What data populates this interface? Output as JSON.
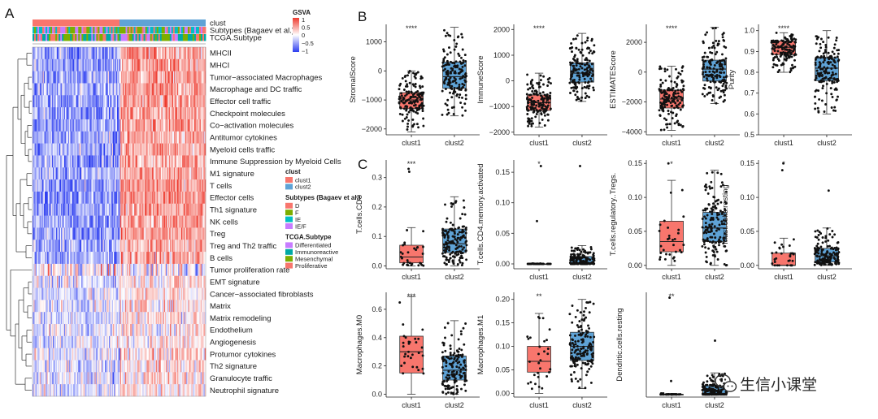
{
  "figure": {
    "panel_labels": [
      "A",
      "B",
      "C"
    ],
    "watermark_text": "生信小课堂",
    "colors": {
      "clust1": "#f8766d",
      "clust2": "#5fa3d6",
      "heat_high": "#ee3b2f",
      "heat_mid": "#ffffff",
      "heat_low": "#2c3df0"
    }
  },
  "heatmap": {
    "annotation_rows": [
      "clust",
      "Subtypes (Bagaev et al.)",
      "TCGA.Subtype"
    ],
    "gsva_legend": {
      "title": "GSVA",
      "ticks": [
        "1",
        "0.5",
        "0",
        "−0.5",
        "−1"
      ]
    },
    "rows": [
      "MHCII",
      "MHCI",
      "Tumor−associated Macrophages",
      "Macrophage and DC traffic",
      "Effector cell traffic",
      "Checkpoint molecules",
      "Co−activation molecules",
      "Antitumor cytokines",
      "Myeloid cells traffic",
      "Immune Suppression by Myeloid Cells",
      "M1 signature",
      "T cells",
      "Effector cells",
      "Th1 signature",
      "NK cells",
      "Treg",
      "Treg and Th2 traffic",
      "B cells",
      "Tumor proliferation rate",
      "EMT signature",
      "Cancer−associated fibroblasts",
      "Matrix",
      "Matrix remodeling",
      "Endothelium",
      "Angiogenesis",
      "Protumor cytokines",
      "Th2 signature",
      "Granulocyte traffic",
      "Neutrophil signature"
    ],
    "legends": [
      {
        "title": "clust",
        "items": [
          {
            "label": "clust1",
            "color": "#f8766d"
          },
          {
            "label": "clust2",
            "color": "#5fa3d6"
          }
        ]
      },
      {
        "title": "Subtypes (Bagaev et al.)",
        "items": [
          {
            "label": "D",
            "color": "#f8766d"
          },
          {
            "label": "F",
            "color": "#7cae00"
          },
          {
            "label": "IE",
            "color": "#00bfc4"
          },
          {
            "label": "IE/F",
            "color": "#c77cff"
          }
        ]
      },
      {
        "title": "TCGA.Subtype",
        "items": [
          {
            "label": "Differentiated",
            "color": "#c77cff"
          },
          {
            "label": "Immunoreactive",
            "color": "#00a9a5"
          },
          {
            "label": "Mesenchymal",
            "color": "#7cae00"
          },
          {
            "label": "Proliferative",
            "color": "#f8766d"
          }
        ]
      }
    ]
  },
  "chart_data": [
    {
      "type": "box",
      "panel": "B",
      "ylabel": "StromalScore",
      "categories": [
        "clust1",
        "clust2"
      ],
      "significance": "****",
      "ylim": [
        -2200,
        1600
      ],
      "yticks": [
        1000,
        0,
        -1000,
        -2000
      ],
      "series": [
        {
          "name": "clust1",
          "min": -2100,
          "q1": -1300,
          "median": -1000,
          "q3": -750,
          "max": 0
        },
        {
          "name": "clust2",
          "min": -1550,
          "q1": -600,
          "median": -200,
          "q3": 300,
          "max": 1500
        }
      ]
    },
    {
      "type": "box",
      "panel": "B",
      "ylabel": "ImmuneScore",
      "categories": [
        "clust1",
        "clust2"
      ],
      "significance": "****",
      "ylim": [
        -2100,
        2200
      ],
      "yticks": [
        2000,
        1000,
        0,
        -1000,
        -2000
      ],
      "series": [
        {
          "name": "clust1",
          "min": -1800,
          "q1": -1150,
          "median": -850,
          "q3": -550,
          "max": 300
        },
        {
          "name": "clust2",
          "min": -800,
          "q1": -50,
          "median": 300,
          "q3": 700,
          "max": 1850
        }
      ]
    },
    {
      "type": "box",
      "panel": "B",
      "ylabel": "ESTIMATEScore",
      "categories": [
        "clust1",
        "clust2"
      ],
      "significance": "****",
      "ylim": [
        -4200,
        3200
      ],
      "yticks": [
        2000,
        0,
        -2000,
        -4000
      ],
      "series": [
        {
          "name": "clust1",
          "min": -3900,
          "q1": -2400,
          "median": -1800,
          "q3": -1200,
          "max": 400
        },
        {
          "name": "clust2",
          "min": -2100,
          "q1": -600,
          "median": 200,
          "q3": 800,
          "max": 3000
        }
      ]
    },
    {
      "type": "box",
      "panel": "B",
      "ylabel": "Purity",
      "categories": [
        "clust1",
        "clust2"
      ],
      "significance": "****",
      "ylim": [
        0.5,
        1.03
      ],
      "yticks": [
        1.0,
        0.9,
        0.8,
        0.7,
        0.6,
        0.5
      ],
      "series": [
        {
          "name": "clust1",
          "min": 0.8,
          "q1": 0.885,
          "median": 0.92,
          "q3": 0.95,
          "max": 0.99
        },
        {
          "name": "clust2",
          "min": 0.6,
          "q1": 0.76,
          "median": 0.82,
          "q3": 0.87,
          "max": 1.0
        }
      ]
    },
    {
      "type": "box",
      "panel": "C",
      "ylabel": "T.cells.CD8",
      "categories": [
        "clust1",
        "clust2"
      ],
      "significance": "***",
      "ylim": [
        -0.01,
        0.36
      ],
      "yticks": [
        0.3,
        0.2,
        0.1,
        0.0
      ],
      "series": [
        {
          "name": "clust1",
          "min": 0.0,
          "q1": 0.01,
          "median": 0.03,
          "q3": 0.07,
          "max": 0.13
        },
        {
          "name": "clust2",
          "min": 0.0,
          "q1": 0.045,
          "median": 0.075,
          "q3": 0.125,
          "max": 0.235
        }
      ]
    },
    {
      "type": "box",
      "panel": "C",
      "ylabel": "T.cells.CD4.memory.activated",
      "categories": [
        "clust1",
        "clust2"
      ],
      "significance": "*",
      "ylim": [
        -0.008,
        0.17
      ],
      "yticks": [
        0.15,
        0.1,
        0.05,
        0.0
      ],
      "series": [
        {
          "name": "clust1",
          "min": 0.0,
          "q1": 0.0,
          "median": 0.0,
          "q3": 0.0,
          "max": 0.001
        },
        {
          "name": "clust2",
          "min": 0.0,
          "q1": 0.0,
          "median": 0.002,
          "q3": 0.012,
          "max": 0.03
        }
      ]
    },
    {
      "type": "box",
      "panel": "C",
      "ylabel": "T.cells.regulatory..Tregs.",
      "categories": [
        "clust1",
        "clust2"
      ],
      "significance": "*",
      "ylim": [
        -0.005,
        0.155
      ],
      "yticks": [
        0.15,
        0.1,
        0.05,
        0.0
      ],
      "series": [
        {
          "name": "clust1",
          "min": 0.0,
          "q1": 0.02,
          "median": 0.035,
          "q3": 0.065,
          "max": 0.125
        },
        {
          "name": "clust2",
          "min": 0.0,
          "q1": 0.035,
          "median": 0.055,
          "q3": 0.078,
          "max": 0.14
        }
      ]
    },
    {
      "type": "box",
      "panel": "C",
      "ylabel": "Mast.cells.resting",
      "categories": [
        "clust1",
        "clust2"
      ],
      "significance": "*",
      "ylim": [
        -0.005,
        0.155
      ],
      "yticks": [
        0.15,
        0.1,
        0.05,
        0.0
      ],
      "series": [
        {
          "name": "clust1",
          "min": 0.0,
          "q1": 0.0,
          "median": 0.0,
          "q3": 0.018,
          "max": 0.04
        },
        {
          "name": "clust2",
          "min": 0.0,
          "q1": 0.005,
          "median": 0.014,
          "q3": 0.025,
          "max": 0.055
        }
      ]
    },
    {
      "type": "box",
      "panel": "C",
      "ylabel": "Macrophages.M0",
      "categories": [
        "clust1",
        "clust2"
      ],
      "significance": "***",
      "ylim": [
        -0.02,
        0.72
      ],
      "yticks": [
        0.6,
        0.4,
        0.2,
        0.0
      ],
      "series": [
        {
          "name": "clust1",
          "min": 0.0,
          "q1": 0.15,
          "median": 0.3,
          "q3": 0.41,
          "max": 0.69
        },
        {
          "name": "clust2",
          "min": 0.0,
          "q1": 0.1,
          "median": 0.17,
          "q3": 0.27,
          "max": 0.52
        }
      ]
    },
    {
      "type": "box",
      "panel": "C",
      "ylabel": "Macrophages.M1",
      "categories": [
        "clust1",
        "clust2"
      ],
      "significance": "**",
      "ylim": [
        -0.008,
        0.215
      ],
      "yticks": [
        0.2,
        0.15,
        0.1,
        0.05,
        0.0
      ],
      "series": [
        {
          "name": "clust1",
          "min": 0.0,
          "q1": 0.045,
          "median": 0.068,
          "q3": 0.1,
          "max": 0.17
        },
        {
          "name": "clust2",
          "min": 0.01,
          "q1": 0.07,
          "median": 0.1,
          "q3": 0.13,
          "max": 0.2
        }
      ]
    },
    {
      "type": "box",
      "panel": "C",
      "ylabel": "Dendritic.cells.resting",
      "categories": [
        "clust1",
        "clust2"
      ],
      "significance": "**",
      "ylim": [
        -0.005,
        0.19
      ],
      "yticks": [],
      "series": [
        {
          "name": "clust1",
          "min": 0.0,
          "q1": 0.0,
          "median": 0.0,
          "q3": 0.0,
          "max": 0.002
        },
        {
          "name": "clust2",
          "min": 0.0,
          "q1": 0.0,
          "median": 0.002,
          "q3": 0.016,
          "max": 0.04
        }
      ]
    }
  ]
}
